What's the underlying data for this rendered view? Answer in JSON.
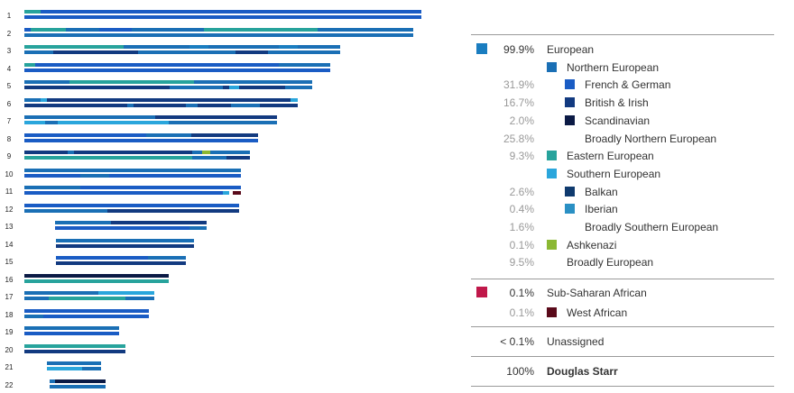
{
  "categories": {
    "R": {
      "label": "Broadly European",
      "color": "#1a7dc0"
    },
    "N": {
      "label": "Broadly Northern European",
      "color": "#1a6fb5"
    },
    "F": {
      "label": "French & German",
      "color": "#1a5cc4"
    },
    "B": {
      "label": "British & Irish",
      "color": "#123a80"
    },
    "S": {
      "label": "Scandinavian",
      "color": "#0b1a45"
    },
    "E": {
      "label": "Eastern European",
      "color": "#27a39c"
    },
    "U": {
      "label": "Broadly Southern European",
      "color": "#2aa6dc"
    },
    "K": {
      "label": "Balkan",
      "color": "#0f3a6e"
    },
    "I": {
      "label": "Iberian",
      "color": "#2a90c4"
    },
    "A": {
      "label": "Ashkenazi",
      "color": "#8bb833"
    },
    "W": {
      "label": "West African",
      "color": "#5a0a1a"
    }
  },
  "chart_data": {
    "type": "heatmap",
    "title": "",
    "xlabel": "",
    "ylabel": "",
    "units": "Mb",
    "chromosomes": [
      {
        "name": "1",
        "start": 0,
        "end": 248,
        "a": [
          [
            0,
            10,
            "E"
          ],
          [
            10,
            248,
            "F"
          ]
        ],
        "b": [
          [
            0,
            248,
            "F"
          ]
        ]
      },
      {
        "name": "2",
        "start": 0,
        "end": 243,
        "a": [
          [
            0,
            4,
            "F"
          ],
          [
            4,
            26,
            "E"
          ],
          [
            26,
            47,
            "N"
          ],
          [
            47,
            67,
            "F"
          ],
          [
            67,
            112,
            "N"
          ],
          [
            112,
            183,
            "E"
          ],
          [
            183,
            243,
            "N"
          ]
        ],
        "b": [
          [
            0,
            243,
            "N"
          ]
        ]
      },
      {
        "name": "3",
        "start": 0,
        "end": 197,
        "a": [
          [
            0,
            62,
            "E"
          ],
          [
            62,
            103,
            "N"
          ],
          [
            103,
            115,
            "R"
          ],
          [
            115,
            159,
            "N"
          ],
          [
            159,
            171,
            "R"
          ],
          [
            171,
            197,
            "N"
          ]
        ],
        "b": [
          [
            0,
            18,
            "N"
          ],
          [
            18,
            71,
            "B"
          ],
          [
            71,
            132,
            "N"
          ],
          [
            132,
            141,
            "B"
          ],
          [
            141,
            152,
            "B"
          ],
          [
            152,
            197,
            "N"
          ]
        ]
      },
      {
        "name": "4",
        "start": 0,
        "end": 191,
        "a": [
          [
            0,
            7,
            "E"
          ],
          [
            7,
            159,
            "F"
          ],
          [
            159,
            191,
            "N"
          ]
        ],
        "b": [
          [
            0,
            191,
            "F"
          ]
        ]
      },
      {
        "name": "5",
        "start": 0,
        "end": 180,
        "a": [
          [
            0,
            28,
            "N"
          ],
          [
            28,
            106,
            "E"
          ],
          [
            106,
            180,
            "N"
          ]
        ],
        "b": [
          [
            0,
            91,
            "B"
          ],
          [
            91,
            124,
            "N"
          ],
          [
            124,
            128,
            "B"
          ],
          [
            128,
            134,
            "U"
          ],
          [
            134,
            163,
            "B"
          ],
          [
            163,
            180,
            "N"
          ]
        ]
      },
      {
        "name": "6",
        "start": 0,
        "end": 171,
        "a": [
          [
            0,
            10,
            "N"
          ],
          [
            10,
            14,
            "U"
          ],
          [
            14,
            166,
            "B"
          ],
          [
            166,
            171,
            "U"
          ]
        ],
        "b": [
          [
            0,
            64,
            "B"
          ],
          [
            64,
            68,
            "N"
          ],
          [
            68,
            101,
            "B"
          ],
          [
            101,
            108,
            "N"
          ],
          [
            108,
            129,
            "B"
          ],
          [
            129,
            147,
            "N"
          ],
          [
            147,
            171,
            "B"
          ]
        ]
      },
      {
        "name": "7",
        "start": 0,
        "end": 158,
        "a": [
          [
            0,
            82,
            "N"
          ],
          [
            82,
            158,
            "B"
          ]
        ],
        "b": [
          [
            0,
            13,
            "U"
          ],
          [
            13,
            21,
            "N"
          ],
          [
            21,
            90,
            "U"
          ],
          [
            90,
            158,
            "N"
          ]
        ]
      },
      {
        "name": "8",
        "start": 0,
        "end": 146,
        "a": [
          [
            0,
            76,
            "F"
          ],
          [
            76,
            104,
            "N"
          ],
          [
            104,
            146,
            "B"
          ]
        ],
        "b": [
          [
            0,
            146,
            "F"
          ]
        ]
      },
      {
        "name": "9",
        "start": 0,
        "end": 141,
        "a": [
          [
            0,
            27,
            "B"
          ],
          [
            27,
            31,
            "N"
          ],
          [
            31,
            105,
            "B"
          ],
          [
            105,
            111,
            "N"
          ],
          [
            111,
            116,
            "A"
          ],
          [
            116,
            141,
            "N"
          ]
        ],
        "b": [
          [
            0,
            105,
            "E"
          ],
          [
            105,
            126,
            "N"
          ],
          [
            126,
            141,
            "B"
          ]
        ]
      },
      {
        "name": "10",
        "start": 0,
        "end": 135,
        "a": [
          [
            0,
            135,
            "N"
          ]
        ],
        "b": [
          [
            0,
            35,
            "F"
          ],
          [
            35,
            53,
            "N"
          ],
          [
            53,
            135,
            "F"
          ]
        ]
      },
      {
        "name": "11",
        "start": 0,
        "end": 135,
        "a": [
          [
            0,
            35,
            "N"
          ],
          [
            35,
            135,
            "F"
          ]
        ],
        "b": [
          [
            0,
            124,
            "F"
          ],
          [
            124,
            128,
            "U"
          ],
          [
            130,
            135,
            "W"
          ]
        ]
      },
      {
        "name": "12",
        "start": 0,
        "end": 134,
        "a": [
          [
            0,
            134,
            "F"
          ]
        ],
        "b": [
          [
            0,
            52,
            "N"
          ],
          [
            52,
            134,
            "B"
          ]
        ]
      },
      {
        "name": "13",
        "start": 19,
        "end": 114,
        "a": [
          [
            19,
            54,
            "N"
          ],
          [
            54,
            114,
            "B"
          ]
        ],
        "b": [
          [
            19,
            103,
            "F"
          ],
          [
            103,
            114,
            "N"
          ]
        ]
      },
      {
        "name": "14",
        "start": 20,
        "end": 106,
        "a": [
          [
            20,
            106,
            "N"
          ]
        ],
        "b": [
          [
            20,
            106,
            "B"
          ]
        ]
      },
      {
        "name": "15",
        "start": 20,
        "end": 101,
        "a": [
          [
            20,
            77,
            "F"
          ],
          [
            77,
            101,
            "N"
          ]
        ],
        "b": [
          [
            20,
            101,
            "B"
          ]
        ]
      },
      {
        "name": "16",
        "start": 0,
        "end": 90,
        "a": [
          [
            0,
            90,
            "S"
          ]
        ],
        "b": [
          [
            0,
            90,
            "E"
          ]
        ]
      },
      {
        "name": "17",
        "start": 0,
        "end": 81,
        "a": [
          [
            0,
            46,
            "N"
          ],
          [
            46,
            81,
            "U"
          ]
        ],
        "b": [
          [
            0,
            15,
            "N"
          ],
          [
            15,
            63,
            "E"
          ],
          [
            63,
            81,
            "N"
          ]
        ]
      },
      {
        "name": "18",
        "start": 0,
        "end": 78,
        "a": [
          [
            0,
            78,
            "F"
          ]
        ],
        "b": [
          [
            0,
            12,
            "N"
          ],
          [
            12,
            78,
            "F"
          ]
        ]
      },
      {
        "name": "19",
        "start": 0,
        "end": 59,
        "a": [
          [
            0,
            59,
            "N"
          ]
        ],
        "b": [
          [
            0,
            59,
            "F"
          ]
        ]
      },
      {
        "name": "20",
        "start": 0,
        "end": 63,
        "a": [
          [
            0,
            63,
            "E"
          ]
        ],
        "b": [
          [
            0,
            63,
            "B"
          ]
        ]
      },
      {
        "name": "21",
        "start": 14,
        "end": 48,
        "a": [
          [
            14,
            48,
            "N"
          ]
        ],
        "b": [
          [
            14,
            36,
            "U"
          ],
          [
            36,
            48,
            "N"
          ]
        ]
      },
      {
        "name": "22",
        "start": 16,
        "end": 51,
        "a": [
          [
            16,
            19,
            "N"
          ],
          [
            19,
            51,
            "S"
          ]
        ],
        "b": [
          [
            16,
            51,
            "N"
          ]
        ]
      }
    ]
  },
  "legend": {
    "groups": [
      {
        "rows": [
          {
            "level": 0,
            "pct": "99.9%",
            "label": "European",
            "color": "#1a7dc0"
          },
          {
            "level": 1,
            "pct": "",
            "label": "Northern European",
            "color": "#1a6fb5"
          },
          {
            "level": 2,
            "pct": "31.9%",
            "label": "French & German",
            "color": "#1a5cc4"
          },
          {
            "level": 2,
            "pct": "16.7%",
            "label": "British & Irish",
            "color": "#123a80"
          },
          {
            "level": 2,
            "pct": "2.0%",
            "label": "Scandinavian",
            "color": "#0b1a45"
          },
          {
            "level": 2,
            "pct": "25.8%",
            "label": "Broadly Northern European",
            "color": ""
          },
          {
            "level": 1,
            "pct": "9.3%",
            "label": "Eastern European",
            "color": "#27a39c"
          },
          {
            "level": 1,
            "pct": "",
            "label": "Southern European",
            "color": "#2aa6dc"
          },
          {
            "level": 2,
            "pct": "2.6%",
            "label": "Balkan",
            "color": "#0f3a6e"
          },
          {
            "level": 2,
            "pct": "0.4%",
            "label": "Iberian",
            "color": "#2a90c4"
          },
          {
            "level": 2,
            "pct": "1.6%",
            "label": "Broadly Southern European",
            "color": ""
          },
          {
            "level": 1,
            "pct": "0.1%",
            "label": "Ashkenazi",
            "color": "#8bb833"
          },
          {
            "level": 1,
            "pct": "9.5%",
            "label": "Broadly European",
            "color": ""
          }
        ]
      },
      {
        "rows": [
          {
            "level": 0,
            "pct": "0.1%",
            "label": "Sub-Saharan African",
            "color": "#c0184a"
          },
          {
            "level": 1,
            "pct": "0.1%",
            "label": "West African",
            "color": "#5a0a1a"
          }
        ]
      },
      {
        "rows": [
          {
            "level": 0,
            "pct": "< 0.1%",
            "label": "Unassigned",
            "color": ""
          }
        ]
      },
      {
        "rows": [
          {
            "level": 0,
            "pct": "100%",
            "label": "Douglas Starr",
            "color": "",
            "bold": true
          }
        ]
      }
    ]
  }
}
